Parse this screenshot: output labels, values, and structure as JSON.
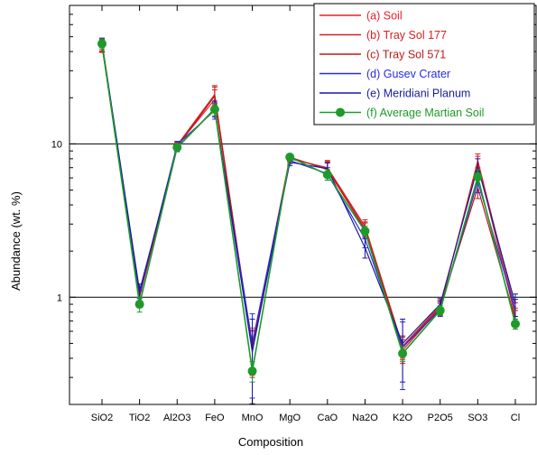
{
  "chart_data": {
    "type": "line",
    "xlabel": "Composition",
    "ylabel": "Abundance (wt. %)",
    "yscale": "log",
    "ylim": [
      0.2,
      80
    ],
    "yticks": [
      {
        "value": 1,
        "label": "1"
      },
      {
        "value": 10,
        "label": "10"
      }
    ],
    "gridlines_y": [
      1,
      10
    ],
    "categories": [
      "SiO2",
      "TiO2",
      "Al2O3",
      "FeO",
      "MnO",
      "MgO",
      "CaO",
      "Na2O",
      "K2O",
      "P2O5",
      "SO3",
      "Cl"
    ],
    "legend_position": "top-right",
    "series": [
      {
        "name": "(a) Soil",
        "color": "#e8202a",
        "marker": false,
        "values": [
          44.5,
          1.0,
          9.7,
          19.5,
          0.48,
          8.1,
          6.9,
          2.8,
          0.45,
          0.85,
          7.8,
          0.82
        ],
        "errors": [
          4.0,
          0.1,
          0.5,
          3.0,
          0.15,
          0.4,
          0.8,
          0.3,
          0.08,
          0.08,
          0.8,
          0.1
        ]
      },
      {
        "name": "(b) Tray Sol 177",
        "color": "#d42020",
        "marker": false,
        "values": [
          44.0,
          1.05,
          9.8,
          21.0,
          0.45,
          8.0,
          7.0,
          2.9,
          0.48,
          0.88,
          7.5,
          0.75
        ],
        "errors": [
          4.0,
          0.1,
          0.5,
          3.0,
          0.15,
          0.4,
          0.8,
          0.3,
          0.08,
          0.08,
          0.8,
          0.1
        ]
      },
      {
        "name": "(c) Tray Sol 571",
        "color": "#c01818",
        "marker": false,
        "values": [
          43.5,
          1.02,
          9.6,
          20.5,
          0.46,
          8.2,
          6.8,
          2.75,
          0.47,
          0.86,
          5.2,
          0.72
        ],
        "errors": [
          4.0,
          0.1,
          0.5,
          3.0,
          0.15,
          0.4,
          0.8,
          0.3,
          0.08,
          0.08,
          0.8,
          0.1
        ]
      },
      {
        "name": "(d) Gusev Crater",
        "color": "#2a2ae0",
        "marker": false,
        "values": [
          45.5,
          1.05,
          9.9,
          16.5,
          0.5,
          7.8,
          6.4,
          2.4,
          0.47,
          0.83,
          5.7,
          0.82
        ],
        "errors": [
          3.0,
          0.12,
          0.5,
          2.0,
          0.28,
          0.4,
          0.6,
          0.3,
          0.22,
          0.08,
          0.9,
          0.15
        ]
      },
      {
        "name": "(e) Meridiani Planum",
        "color": "#1a1aa0",
        "marker": false,
        "values": [
          46.0,
          1.1,
          9.4,
          17.0,
          0.44,
          7.6,
          6.9,
          2.1,
          0.5,
          0.9,
          7.1,
          0.9
        ],
        "errors": [
          3.0,
          0.12,
          0.5,
          2.0,
          0.28,
          0.4,
          0.6,
          0.3,
          0.22,
          0.08,
          0.9,
          0.15
        ]
      },
      {
        "name": "(f) Average Martian Soil",
        "color": "#1e9a2a",
        "marker": true,
        "values": [
          45.0,
          0.9,
          9.5,
          16.8,
          0.33,
          8.2,
          6.3,
          2.7,
          0.43,
          0.82,
          6.1,
          0.67
        ],
        "errors": [
          3.5,
          0.1,
          0.4,
          1.5,
          0.05,
          0.4,
          0.5,
          0.2,
          0.05,
          0.06,
          0.7,
          0.05
        ]
      }
    ]
  }
}
